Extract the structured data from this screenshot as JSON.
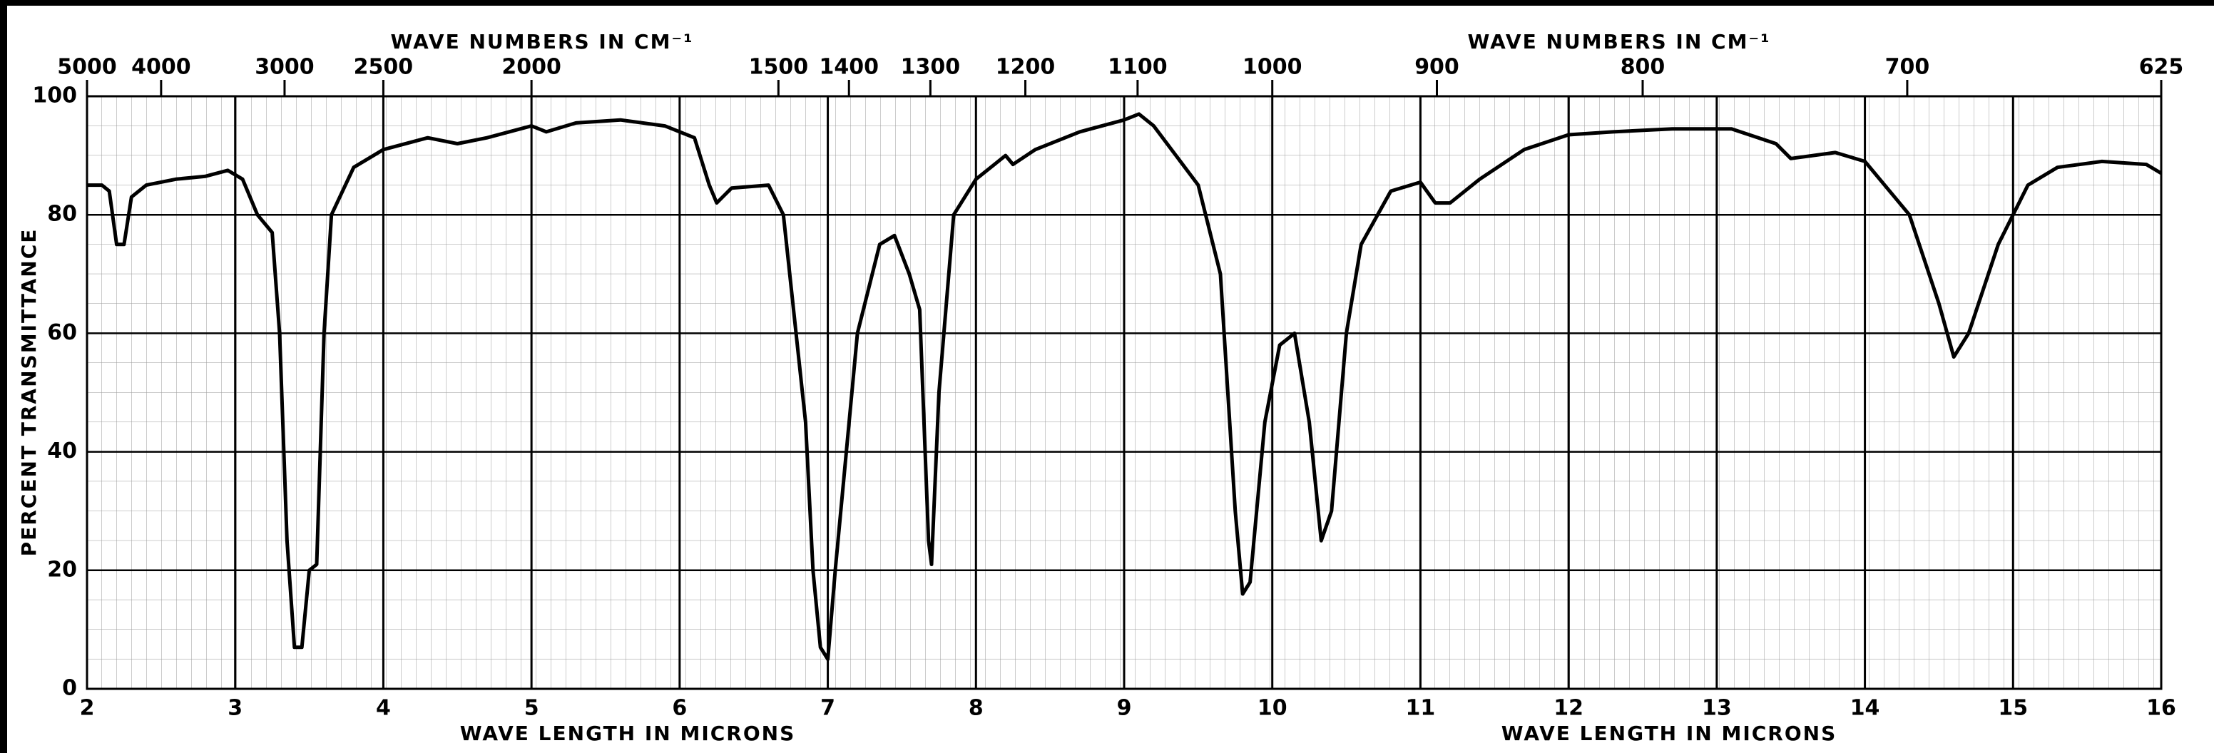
{
  "chart_data": {
    "type": "line",
    "x_label": "WAVE LENGTH IN MICRONS",
    "x2_label": "WAVE NUMBERS IN CM⁻¹",
    "y_label": "PERCENT TRANSMITTANCE",
    "xlim": [
      2,
      16
    ],
    "xticks": [
      2,
      3,
      4,
      5,
      6,
      7,
      8,
      9,
      10,
      11,
      12,
      13,
      14,
      15,
      16
    ],
    "x2ticks": [
      5000,
      4000,
      3000,
      2500,
      2000,
      1500,
      1400,
      1300,
      1200,
      1100,
      1000,
      900,
      800,
      700,
      625
    ],
    "ylim": [
      0,
      100
    ],
    "yticks": [
      0,
      20,
      40,
      60,
      80,
      100
    ],
    "grid": true,
    "x": [
      2.0,
      2.1,
      2.15,
      2.2,
      2.25,
      2.3,
      2.4,
      2.6,
      2.8,
      2.95,
      3.05,
      3.15,
      3.25,
      3.3,
      3.35,
      3.4,
      3.45,
      3.5,
      3.55,
      3.6,
      3.65,
      3.8,
      4.0,
      4.3,
      4.5,
      4.7,
      5.0,
      5.1,
      5.3,
      5.6,
      5.9,
      6.1,
      6.2,
      6.25,
      6.35,
      6.6,
      6.7,
      6.85,
      6.9,
      6.95,
      7.0,
      7.05,
      7.2,
      7.35,
      7.45,
      7.55,
      7.62,
      7.68,
      7.7,
      7.75,
      7.85,
      8.0,
      8.2,
      8.25,
      8.4,
      8.7,
      9.0,
      9.1,
      9.2,
      9.5,
      9.65,
      9.75,
      9.8,
      9.85,
      9.95,
      10.05,
      10.15,
      10.25,
      10.33,
      10.4,
      10.5,
      10.6,
      10.8,
      11.0,
      11.1,
      11.2,
      11.4,
      11.7,
      12.0,
      12.3,
      12.7,
      13.1,
      13.4,
      13.5,
      13.8,
      14.0,
      14.3,
      14.5,
      14.6,
      14.7,
      14.9,
      15.1,
      15.3,
      15.6,
      15.9,
      16.0
    ],
    "series": [
      {
        "color": "#000000",
        "values": [
          85,
          85,
          84,
          75,
          75,
          83,
          85,
          86,
          86.5,
          87.5,
          86,
          80,
          77,
          60,
          25,
          7,
          7,
          20,
          21,
          60,
          80,
          88,
          91,
          93,
          92,
          93,
          95,
          94,
          95.5,
          96,
          95,
          93,
          85,
          82,
          84.5,
          85,
          80,
          45,
          20,
          7,
          5,
          20,
          60,
          75,
          76.5,
          70,
          64,
          25,
          21,
          50,
          80,
          86,
          90,
          88.5,
          91,
          94,
          96,
          97,
          95,
          85,
          70,
          30,
          16,
          18,
          45,
          58,
          60,
          45,
          25,
          30,
          60,
          75,
          84,
          85.5,
          82,
          82,
          86,
          91,
          93.5,
          94,
          94.5,
          94.5,
          92,
          89.5,
          90.5,
          89,
          80,
          65,
          56,
          60,
          75,
          85,
          88,
          89,
          88.5,
          87
        ]
      }
    ]
  }
}
